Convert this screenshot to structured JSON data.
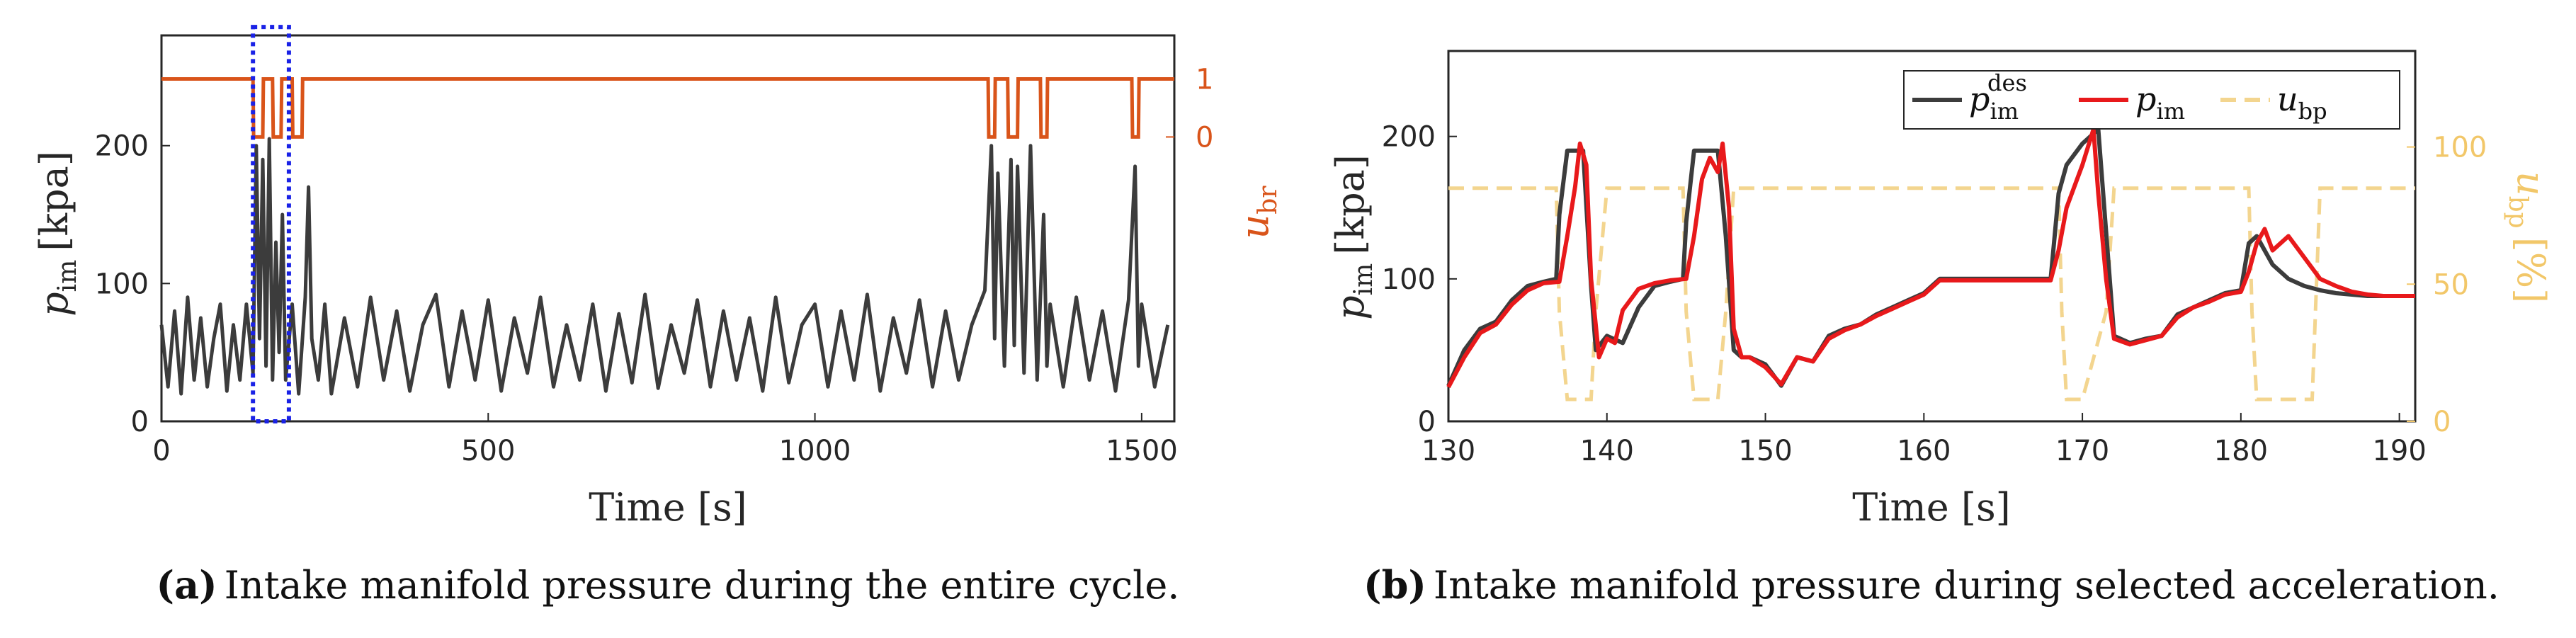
{
  "colors": {
    "black_series": "#3c3c3c",
    "red_series": "#e8191b",
    "orange_series": "#d9541a",
    "yellow_series": "#f3d58f",
    "highlight_box": "#1a22e6",
    "axis": "#262626"
  },
  "chart_data": [
    {
      "id": "a",
      "type": "line",
      "caption_label": "(a)",
      "caption_text": "Intake manifold pressure during the entire cycle.",
      "xlabel": "Time [s]",
      "ylabel": "p_im [kpa]",
      "ylabel_main": "p",
      "ylabel_sub": "im",
      "ylabel_unit": "[kpa]",
      "y2label_main": "u",
      "y2label_sub": "br",
      "xlim": [
        0,
        1550
      ],
      "ylim": [
        0,
        280
      ],
      "xticks": [
        "0",
        "500",
        "1000",
        "1500"
      ],
      "xtick_values": [
        0,
        500,
        1000,
        1500
      ],
      "yticks": [
        "0",
        "100",
        "200"
      ],
      "ytick_values": [
        0,
        100,
        200
      ],
      "y2ticks": [
        "0",
        "1"
      ],
      "y2tick_values": [
        0,
        1
      ],
      "y2lim": [
        -4.9,
        1.75
      ],
      "series": [
        {
          "name": "p_im",
          "color": "#3c3c3c",
          "description": "Intake manifold pressure fluctuating mostly between 20 and 95 kpa with spikes up to about 200 kpa",
          "x": [
            0,
            10,
            20,
            30,
            40,
            50,
            60,
            70,
            80,
            90,
            100,
            110,
            120,
            130,
            140,
            145,
            150,
            155,
            160,
            165,
            170,
            175,
            180,
            185,
            190,
            200,
            210,
            220,
            225,
            230,
            240,
            250,
            260,
            280,
            300,
            320,
            340,
            360,
            380,
            400,
            420,
            440,
            460,
            480,
            500,
            520,
            540,
            560,
            580,
            600,
            620,
            640,
            660,
            680,
            700,
            720,
            740,
            760,
            780,
            800,
            820,
            840,
            860,
            880,
            900,
            920,
            940,
            960,
            980,
            1000,
            1020,
            1040,
            1060,
            1080,
            1100,
            1120,
            1140,
            1160,
            1180,
            1200,
            1220,
            1240,
            1260,
            1270,
            1275,
            1280,
            1290,
            1300,
            1305,
            1310,
            1320,
            1330,
            1340,
            1350,
            1355,
            1360,
            1380,
            1400,
            1420,
            1440,
            1460,
            1480,
            1490,
            1495,
            1500,
            1520,
            1540
          ],
          "values": [
            70,
            25,
            80,
            20,
            90,
            30,
            75,
            25,
            60,
            85,
            22,
            70,
            30,
            85,
            35,
            200,
            60,
            190,
            40,
            205,
            30,
            130,
            50,
            150,
            30,
            85,
            20,
            90,
            170,
            60,
            30,
            85,
            20,
            75,
            25,
            90,
            30,
            80,
            22,
            70,
            92,
            25,
            80,
            30,
            88,
            22,
            75,
            35,
            90,
            25,
            70,
            30,
            85,
            22,
            78,
            28,
            92,
            24,
            70,
            35,
            88,
            25,
            80,
            30,
            75,
            22,
            90,
            28,
            70,
            85,
            25,
            80,
            30,
            92,
            22,
            75,
            35,
            88,
            25,
            80,
            30,
            70,
            95,
            200,
            60,
            180,
            40,
            190,
            55,
            185,
            35,
            200,
            30,
            150,
            40,
            85,
            25,
            90,
            30,
            80,
            22,
            88,
            185,
            40,
            85,
            25,
            70
          ]
        },
        {
          "name": "u_br",
          "color": "#d9541a",
          "description": "Brake signal, equal to 1 except short drops to 0",
          "x": [
            0,
            140,
            141,
            155,
            156,
            170,
            171,
            183,
            184,
            200,
            201,
            215,
            216,
            1265,
            1266,
            1275,
            1276,
            1295,
            1296,
            1310,
            1311,
            1345,
            1346,
            1355,
            1356,
            1485,
            1486,
            1495,
            1496,
            1550
          ],
          "values": [
            1,
            1,
            0,
            0,
            1,
            1,
            0,
            0,
            1,
            1,
            0,
            0,
            1,
            1,
            0,
            0,
            1,
            1,
            0,
            0,
            1,
            1,
            0,
            0,
            1,
            1,
            0,
            0,
            1,
            1
          ]
        }
      ],
      "highlight_box": {
        "x_range": [
          140,
          195
        ],
        "y_range": [
          0,
          282
        ],
        "color": "#1a22e6",
        "style": "dotted"
      }
    },
    {
      "id": "b",
      "type": "line",
      "caption_label": "(b)",
      "caption_text": "Intake manifold pressure during selected acceleration.",
      "xlabel": "Time [s]",
      "ylabel": "p_im [kpa]",
      "ylabel_main": "p",
      "ylabel_sub": "im",
      "ylabel_unit": "[kpa]",
      "y2label_main": "u",
      "y2label_sub": "bp",
      "y2label_unit": "[%]",
      "xlim": [
        130,
        191
      ],
      "ylim": [
        0,
        260
      ],
      "y2lim": [
        0,
        135
      ],
      "xticks": [
        "130",
        "140",
        "150",
        "160",
        "170",
        "180",
        "190"
      ],
      "xtick_values": [
        130,
        140,
        150,
        160,
        170,
        180,
        190
      ],
      "yticks": [
        "0",
        "100",
        "200"
      ],
      "ytick_values": [
        0,
        100,
        200
      ],
      "y2ticks": [
        "0",
        "50",
        "100"
      ],
      "y2tick_values": [
        0,
        50,
        100
      ],
      "legend": {
        "placement": "top-right",
        "entries": [
          {
            "main": "p",
            "sub": "im",
            "sup": "des",
            "color": "#3c3c3c",
            "dash": false
          },
          {
            "main": "p",
            "sub": "im",
            "sup": "",
            "color": "#e8191b",
            "dash": false
          },
          {
            "main": "u",
            "sub": "bp",
            "sup": "",
            "color": "#f3d58f",
            "dash": true
          }
        ]
      },
      "series": [
        {
          "name": "p_im^des",
          "color": "#3c3c3c",
          "axis": "left",
          "x": [
            130,
            131,
            132,
            133,
            134,
            135,
            136,
            136.8,
            137,
            137.5,
            138,
            138.5,
            139,
            139.3,
            140,
            141,
            142,
            143,
            144,
            144.8,
            145,
            145.5,
            146,
            147,
            147.5,
            148,
            148.5,
            149,
            150,
            151,
            152,
            153,
            154,
            155,
            156,
            157,
            158,
            159,
            160,
            161,
            162,
            163,
            164,
            165,
            166,
            167,
            168,
            168.5,
            169,
            170,
            171,
            172,
            173,
            174,
            175,
            176,
            177,
            178,
            179,
            180,
            180.5,
            181,
            182,
            183,
            184,
            185,
            186,
            187,
            188,
            189,
            190,
            191
          ],
          "values": [
            25,
            50,
            65,
            70,
            85,
            95,
            98,
            100,
            145,
            190,
            190,
            190,
            95,
            50,
            60,
            55,
            80,
            95,
            98,
            100,
            140,
            190,
            190,
            190,
            130,
            50,
            45,
            45,
            40,
            25,
            45,
            42,
            60,
            65,
            68,
            75,
            80,
            85,
            90,
            100,
            100,
            100,
            100,
            100,
            100,
            100,
            100,
            160,
            180,
            195,
            205,
            60,
            55,
            58,
            60,
            75,
            80,
            85,
            90,
            92,
            125,
            130,
            110,
            100,
            95,
            92,
            90,
            89,
            88,
            88,
            88,
            88
          ]
        },
        {
          "name": "p_im",
          "color": "#e8191b",
          "axis": "left",
          "x": [
            130,
            131,
            132,
            133,
            134,
            135,
            136,
            137,
            137.5,
            138,
            138.3,
            138.7,
            139,
            139.5,
            140,
            140.5,
            141,
            142,
            143,
            144,
            145,
            145.5,
            146,
            146.5,
            147,
            147.3,
            147.7,
            148,
            148.5,
            149,
            150,
            151,
            152,
            153,
            154,
            155,
            156,
            157,
            158,
            159,
            160,
            161,
            162,
            163,
            164,
            165,
            166,
            167,
            168,
            168.5,
            169,
            170,
            170.7,
            171,
            171.5,
            172,
            173,
            174,
            175,
            176,
            177,
            178,
            179,
            180,
            180.5,
            181,
            181.5,
            182,
            183,
            184,
            185,
            186,
            187,
            188,
            189,
            190,
            191
          ],
          "values": [
            24,
            45,
            62,
            68,
            82,
            92,
            97,
            98,
            130,
            165,
            195,
            180,
            100,
            45,
            58,
            55,
            78,
            93,
            97,
            99,
            100,
            130,
            170,
            185,
            175,
            195,
            150,
            65,
            45,
            45,
            38,
            26,
            45,
            42,
            58,
            64,
            68,
            74,
            79,
            84,
            89,
            99,
            99,
            99,
            99,
            99,
            99,
            99,
            99,
            120,
            150,
            180,
            205,
            160,
            100,
            58,
            54,
            57,
            60,
            73,
            80,
            84,
            89,
            91,
            105,
            125,
            135,
            120,
            130,
            115,
            100,
            95,
            91,
            89,
            88,
            88,
            88
          ]
        },
        {
          "name": "u_bp",
          "color": "#f3d58f",
          "axis": "right",
          "dashed": true,
          "x": [
            130,
            136.8,
            137,
            137.5,
            139,
            139.3,
            140,
            144.8,
            145,
            145.5,
            147,
            147.5,
            148,
            168.5,
            168.7,
            169,
            170,
            171.5,
            172,
            180.5,
            180.7,
            181,
            184.5,
            185,
            191
          ],
          "values": [
            85,
            85,
            40,
            8,
            8,
            40,
            85,
            85,
            40,
            8,
            8,
            40,
            85,
            85,
            40,
            8,
            8,
            40,
            85,
            85,
            40,
            8,
            8,
            85,
            85
          ]
        }
      ]
    }
  ]
}
